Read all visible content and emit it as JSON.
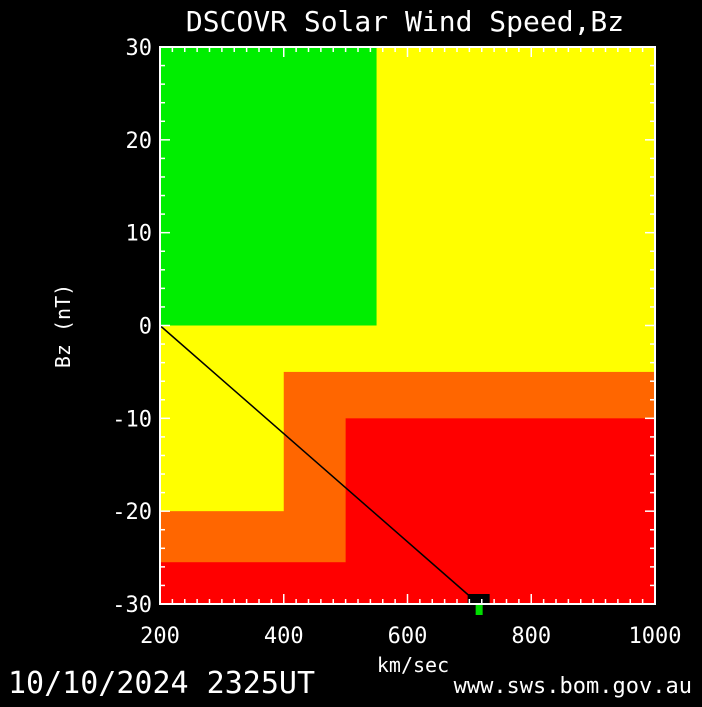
{
  "colors": {
    "background": "#000000",
    "text": "#ffffff",
    "green": "#00ee00",
    "yellow": "#ffff00",
    "orange": "#ff6600",
    "red": "#ff0000",
    "line": "#000000",
    "marker_outer": "#000000",
    "marker_inner": "#00dd00"
  },
  "footer": {
    "timestamp": "10/10/2024 2325UT",
    "source": "www.sws.bom.gov.au"
  },
  "chart_data": {
    "type": "heatmap",
    "title": "DSCOVR Solar Wind Speed,Bz",
    "xlabel": "km/sec",
    "ylabel": "Bz (nT)",
    "xlim": [
      200,
      1000
    ],
    "ylim": [
      -30,
      30
    ],
    "x_ticks": [
      200,
      400,
      600,
      800,
      1000
    ],
    "y_ticks": [
      30,
      20,
      10,
      0,
      -10,
      -20,
      -30
    ],
    "regions": [
      {
        "name": "green",
        "color": "green",
        "x": [
          200,
          550
        ],
        "y": [
          0,
          30
        ]
      },
      {
        "name": "yellow",
        "color": "yellow",
        "x": [
          200,
          1000
        ],
        "y": [
          -30,
          30
        ]
      },
      {
        "name": "orange-lower-left",
        "color": "orange",
        "x": [
          200,
          500
        ],
        "y": [
          -30,
          -20
        ]
      },
      {
        "name": "orange-main",
        "color": "orange",
        "x": [
          400,
          1000
        ],
        "y": [
          -30,
          -5
        ]
      },
      {
        "name": "red-main",
        "color": "red",
        "x": [
          500,
          1000
        ],
        "y": [
          -30,
          -10
        ]
      },
      {
        "name": "red-bottom",
        "color": "red",
        "x": [
          200,
          1000
        ],
        "y": [
          -30,
          -25.5
        ]
      }
    ],
    "trend_line": {
      "x": [
        200,
        715
      ],
      "y": [
        0,
        -30
      ]
    },
    "current_point": {
      "speed": 715,
      "bz": -30
    }
  }
}
